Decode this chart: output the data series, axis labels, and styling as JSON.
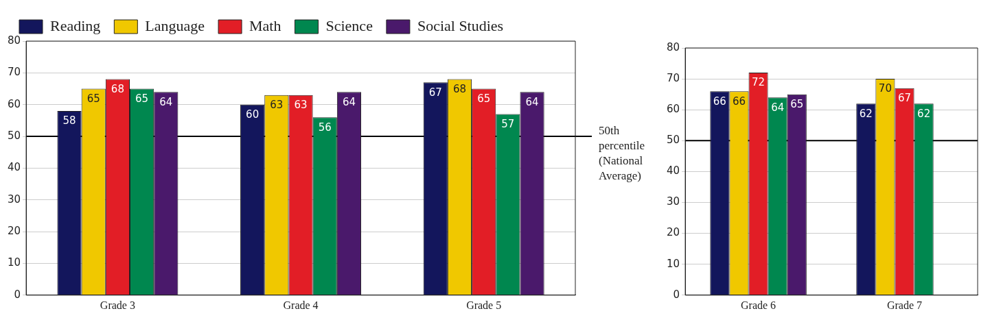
{
  "chart_data": [
    {
      "type": "bar",
      "categories": [
        "Grade 3",
        "Grade 4",
        "Grade 5"
      ],
      "series": [
        {
          "name": "Reading",
          "color": "#13165c",
          "values": [
            58,
            60,
            67
          ]
        },
        {
          "name": "Language",
          "color": "#f0c800",
          "values": [
            65,
            63,
            68
          ]
        },
        {
          "name": "Math",
          "color": "#e21e26",
          "values": [
            68,
            63,
            65
          ]
        },
        {
          "name": "Science",
          "color": "#00874f",
          "values": [
            65,
            56,
            57
          ]
        },
        {
          "name": "Social Studies",
          "color": "#4a196b",
          "values": [
            64,
            64,
            64
          ]
        }
      ],
      "ylim": [
        0,
        80
      ],
      "yticks": [
        0,
        10,
        20,
        30,
        40,
        50,
        60,
        70,
        80
      ],
      "grid": "y",
      "legend": "top left",
      "data_labels": true,
      "ref_lines": [
        {
          "axis": "y",
          "value": 50,
          "label": "50th percentile (National Average)",
          "color": "#000000"
        }
      ]
    },
    {
      "type": "bar",
      "categories": [
        "Grade 6",
        "Grade 7"
      ],
      "series": [
        {
          "color": "#13165c",
          "values": [
            66,
            62
          ]
        },
        {
          "color": "#f0c800",
          "values": [
            66,
            70
          ]
        },
        {
          "color": "#e21e26",
          "values": [
            72,
            67
          ]
        },
        {
          "color": "#00874f",
          "values": [
            64,
            62
          ]
        },
        {
          "color": "#4a196b",
          "values": [
            65,
            null
          ]
        }
      ],
      "ylim": [
        0,
        80
      ],
      "yticks": [
        0,
        10,
        20,
        30,
        40,
        50,
        60,
        70,
        80
      ],
      "grid": "y",
      "data_labels": true,
      "ref_lines": [
        {
          "axis": "y",
          "value": 50,
          "color": "#000000"
        }
      ]
    }
  ]
}
